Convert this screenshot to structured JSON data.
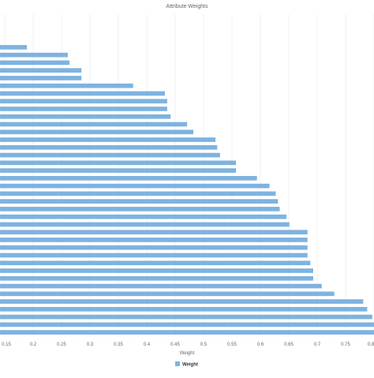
{
  "chart_data": {
    "type": "bar",
    "orientation": "horizontal",
    "title": "Attribute Weights",
    "xlabel": "Weight",
    "ylabel": "",
    "xlim": [
      0.15,
      0.8
    ],
    "x_ticks": [
      "0.15",
      "0.2",
      "0.25",
      "0.3",
      "0.35",
      "0.4",
      "0.45",
      "0.5",
      "0.55",
      "0.6",
      "0.65",
      "0.7",
      "0.75",
      "0.8"
    ],
    "grid": true,
    "legend_position": "bottom",
    "series": [
      {
        "name": "Weight",
        "color": "#7eb3e0",
        "values": [
          0.189,
          0.261,
          0.264,
          0.285,
          0.285,
          0.376,
          0.432,
          0.436,
          0.436,
          0.442,
          0.471,
          0.482,
          0.521,
          0.524,
          0.529,
          0.557,
          0.557,
          0.594,
          0.616,
          0.627,
          0.631,
          0.634,
          0.646,
          0.651,
          0.683,
          0.683,
          0.683,
          0.683,
          0.688,
          0.693,
          0.693,
          0.708,
          0.73,
          0.781,
          0.788,
          0.797,
          0.801,
          0.801
        ]
      }
    ]
  }
}
